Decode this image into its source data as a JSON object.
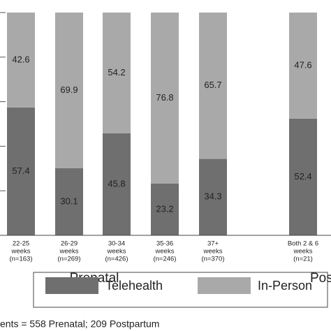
{
  "chart_data": {
    "type": "stacked_bar",
    "categories": [
      [
        "22-25",
        "weeks",
        "(n=163)"
      ],
      [
        "26-29",
        "weeks",
        "(n=269)"
      ],
      [
        "30-34",
        "weeks",
        "(n=426)"
      ],
      [
        "35-36",
        "weeks",
        "(n=246)"
      ],
      [
        "37+",
        "weeks",
        "(n=370)"
      ],
      [
        "Both 2 & 6",
        "weeks",
        "(n=21)"
      ]
    ],
    "series": [
      {
        "name": "Telehealth",
        "color": "#6f6f6f",
        "values": [
          57.4,
          30.1,
          45.8,
          23.2,
          34.3,
          52.4
        ]
      },
      {
        "name": "In-Person",
        "color": "#a9a9a9",
        "values": [
          42.6,
          69.9,
          54.2,
          76.8,
          65.7,
          47.6
        ]
      }
    ],
    "groups": [
      "Prenatal",
      "Pos"
    ],
    "note": "ents = 558 Prenatal; 209 Postpartum",
    "ylim": [
      0,
      100
    ],
    "yticks": [
      0,
      20,
      40,
      60,
      80,
      100
    ]
  }
}
